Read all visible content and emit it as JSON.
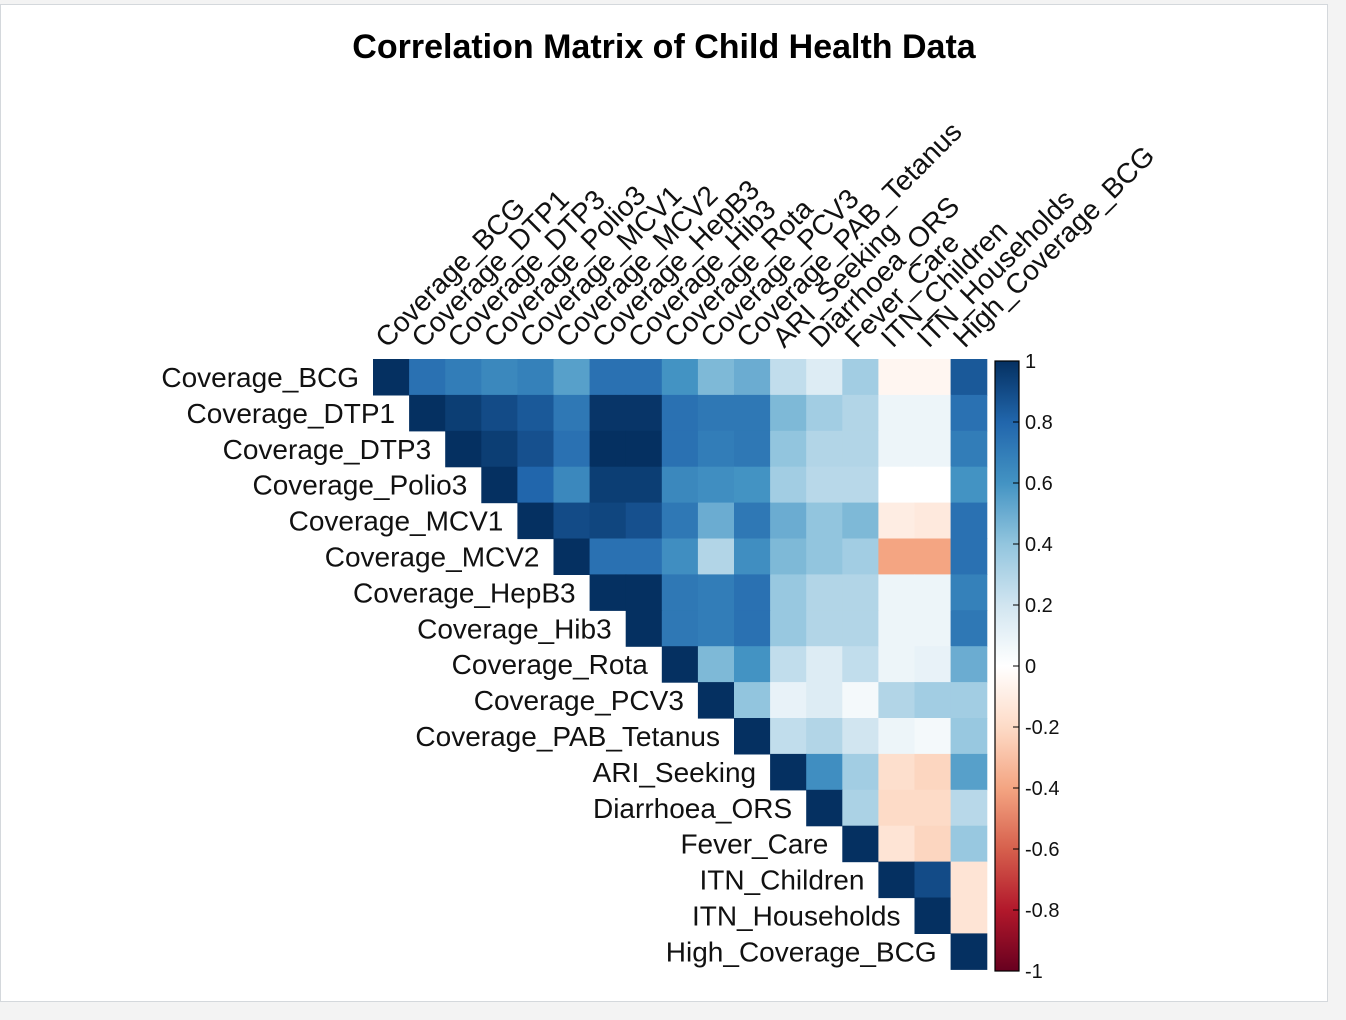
{
  "chart_data": {
    "type": "heatmap",
    "title": "Correlation Matrix of Child Health Data",
    "variables": [
      "Coverage_BCG",
      "Coverage_DTP1",
      "Coverage_DTP3",
      "Coverage_Polio3",
      "Coverage_MCV1",
      "Coverage_MCV2",
      "Coverage_HepB3",
      "Coverage_Hib3",
      "Coverage_Rota",
      "Coverage_PCV3",
      "Coverage_PAB_Tetanus",
      "ARI_Seeking",
      "Diarrhoea_ORS",
      "Fever_Care",
      "ITN_Children",
      "ITN_Households",
      "High_Coverage_BCG"
    ],
    "matrix": [
      [
        1,
        0.75,
        0.7,
        0.65,
        0.68,
        0.55,
        0.75,
        0.75,
        0.6,
        0.45,
        0.5,
        0.25,
        0.15,
        0.35,
        -0.05,
        -0.05,
        0.85
      ],
      [
        null,
        1,
        0.95,
        0.9,
        0.85,
        0.72,
        0.98,
        0.98,
        0.75,
        0.72,
        0.72,
        0.45,
        0.35,
        0.3,
        0.08,
        0.08,
        0.75
      ],
      [
        null,
        null,
        1,
        0.95,
        0.88,
        0.75,
        1,
        1,
        0.75,
        0.7,
        0.72,
        0.4,
        0.3,
        0.3,
        0.08,
        0.08,
        0.7
      ],
      [
        null,
        null,
        null,
        1,
        0.8,
        0.65,
        0.95,
        0.95,
        0.65,
        0.62,
        0.6,
        0.35,
        0.28,
        0.28,
        0,
        0,
        0.6
      ],
      [
        null,
        null,
        null,
        null,
        1,
        0.9,
        0.92,
        0.88,
        0.72,
        0.5,
        0.72,
        0.5,
        0.4,
        0.45,
        -0.1,
        -0.12,
        0.75
      ],
      [
        null,
        null,
        null,
        null,
        null,
        1,
        0.75,
        0.75,
        0.62,
        0.3,
        0.62,
        0.45,
        0.4,
        0.35,
        -0.4,
        -0.4,
        0.75
      ],
      [
        null,
        null,
        null,
        null,
        null,
        null,
        1,
        1,
        0.72,
        0.7,
        0.75,
        0.38,
        0.3,
        0.3,
        0.08,
        0.08,
        0.68
      ],
      [
        null,
        null,
        null,
        null,
        null,
        null,
        null,
        1,
        0.72,
        0.7,
        0.75,
        0.38,
        0.3,
        0.3,
        0.08,
        0.08,
        0.72
      ],
      [
        null,
        null,
        null,
        null,
        null,
        null,
        null,
        null,
        1,
        0.45,
        0.6,
        0.25,
        0.15,
        0.25,
        0.08,
        0.1,
        0.5
      ],
      [
        null,
        null,
        null,
        null,
        null,
        null,
        null,
        null,
        null,
        1,
        0.4,
        0.1,
        0.15,
        0.05,
        0.3,
        0.35,
        0.35
      ],
      [
        null,
        null,
        null,
        null,
        null,
        null,
        null,
        null,
        null,
        null,
        1,
        0.25,
        0.3,
        0.2,
        0.08,
        0.05,
        0.38
      ],
      [
        null,
        null,
        null,
        null,
        null,
        null,
        null,
        null,
        null,
        null,
        null,
        1,
        0.62,
        0.35,
        -0.18,
        -0.22,
        0.55
      ],
      [
        null,
        null,
        null,
        null,
        null,
        null,
        null,
        null,
        null,
        null,
        null,
        null,
        1,
        0.32,
        -0.2,
        -0.2,
        0.28
      ],
      [
        null,
        null,
        null,
        null,
        null,
        null,
        null,
        null,
        null,
        null,
        null,
        null,
        null,
        1,
        -0.15,
        -0.22,
        0.38
      ],
      [
        null,
        null,
        null,
        null,
        null,
        null,
        null,
        null,
        null,
        null,
        null,
        null,
        null,
        null,
        1,
        0.9,
        -0.15
      ],
      [
        null,
        null,
        null,
        null,
        null,
        null,
        null,
        null,
        null,
        null,
        null,
        null,
        null,
        null,
        null,
        1,
        -0.15
      ],
      [
        null,
        null,
        null,
        null,
        null,
        null,
        null,
        null,
        null,
        null,
        null,
        null,
        null,
        null,
        null,
        null,
        1
      ]
    ],
    "colorbar": {
      "range": [
        -1,
        1
      ],
      "ticks": [
        "1",
        "0.8",
        "0.6",
        "0.4",
        "0.2",
        "0",
        "-0.2",
        "-0.4",
        "-0.6",
        "-0.8",
        "-1"
      ],
      "tick_values": [
        1,
        0.8,
        0.6,
        0.4,
        0.2,
        0,
        -0.2,
        -0.4,
        -0.6,
        -0.8,
        -1
      ],
      "colors": [
        "#67001F",
        "#B2182B",
        "#D6604D",
        "#F4A582",
        "#FDDBC7",
        "#FFFFFF",
        "#D1E5F0",
        "#92C5DE",
        "#4393C3",
        "#2166AC",
        "#053061"
      ]
    },
    "layout": "upper-triangle"
  }
}
